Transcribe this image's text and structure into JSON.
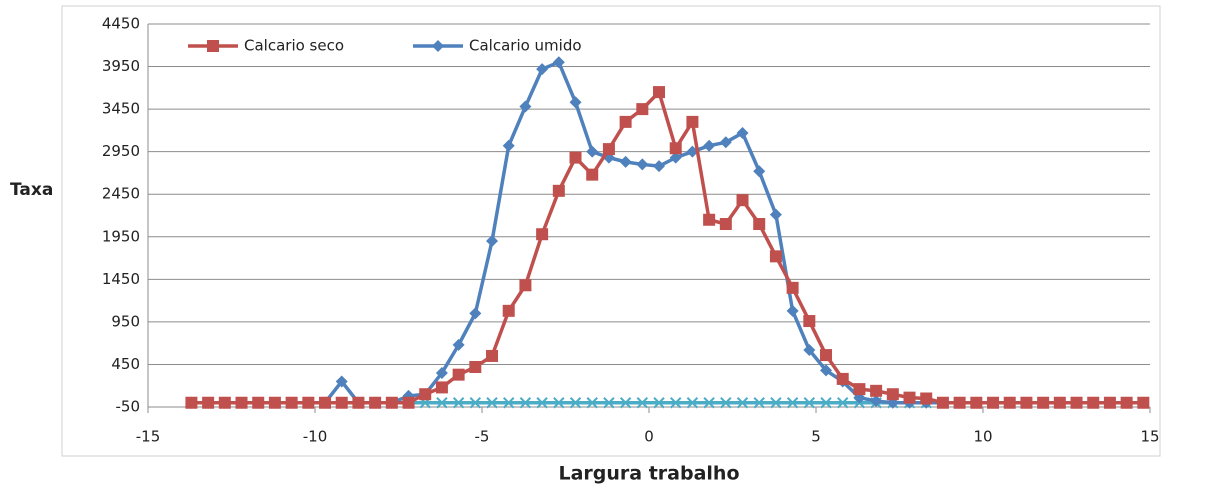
{
  "chart_data": {
    "type": "line",
    "x_label": "Largura trabalho",
    "y_label": "Taxa",
    "x": [
      -13.7,
      -13.2,
      -12.7,
      -12.2,
      -11.7,
      -11.2,
      -10.7,
      -10.2,
      -9.7,
      -9.2,
      -8.7,
      -8.2,
      -7.7,
      -7.2,
      -6.7,
      -6.2,
      -5.7,
      -5.2,
      -4.7,
      -4.2,
      -3.7,
      -3.2,
      -2.7,
      -2.2,
      -1.7,
      -1.2,
      -0.7,
      -0.2,
      0.3,
      0.8,
      1.3,
      1.8,
      2.3,
      2.8,
      3.3,
      3.8,
      4.3,
      4.8,
      5.3,
      5.8,
      6.3,
      6.8,
      7.3,
      7.8,
      8.3,
      8.8,
      9.3,
      9.8,
      10.3,
      10.8,
      11.3,
      11.8,
      12.3,
      12.8,
      13.3,
      13.8,
      14.3,
      14.8
    ],
    "series": [
      {
        "name": "Calcario seco",
        "color": "#c0504d",
        "marker": "square",
        "values": [
          0,
          0,
          0,
          0,
          0,
          0,
          0,
          0,
          0,
          0,
          0,
          0,
          0,
          0,
          100,
          180,
          330,
          420,
          550,
          1080,
          1380,
          1980,
          2490,
          2880,
          2680,
          2980,
          3300,
          3450,
          3650,
          2990,
          3300,
          2150,
          2100,
          2380,
          2100,
          1720,
          1350,
          960,
          560,
          280,
          160,
          140,
          100,
          60,
          50,
          0,
          0,
          0,
          0,
          0,
          0,
          0,
          0,
          0,
          0,
          0,
          0,
          0
        ]
      },
      {
        "name": "Calcario umido",
        "color": "#4f81bd",
        "marker": "diamond",
        "values": [
          0,
          0,
          0,
          0,
          0,
          0,
          0,
          0,
          0,
          250,
          0,
          0,
          0,
          80,
          100,
          350,
          680,
          1050,
          1900,
          3020,
          3480,
          3920,
          4000,
          3530,
          2950,
          2880,
          2830,
          2800,
          2780,
          2880,
          2950,
          3020,
          3060,
          3170,
          2720,
          2210,
          1080,
          620,
          380,
          250,
          60,
          20,
          0,
          0,
          0,
          0,
          0,
          0,
          0,
          0,
          0,
          0,
          0,
          0,
          0,
          0,
          0,
          0
        ]
      },
      {
        "color": "#4bacc6",
        "marker": "x",
        "values": [
          0,
          0,
          0,
          0,
          0,
          0,
          0,
          0,
          0,
          0,
          0,
          0,
          0,
          0,
          0,
          0,
          0,
          0,
          0,
          0,
          0,
          0,
          0,
          0,
          0,
          0,
          0,
          0,
          0,
          0,
          0,
          0,
          0,
          0,
          0,
          0,
          0,
          0,
          0,
          0,
          0,
          0,
          0,
          0,
          0,
          0,
          0,
          0,
          0,
          0,
          0,
          0,
          0,
          0,
          0,
          0,
          0,
          0
        ]
      }
    ],
    "xlim": [
      -15,
      15
    ],
    "xticks": [
      -15,
      -10,
      -5,
      0,
      5,
      10,
      15
    ],
    "ylim": [
      -50,
      4450
    ],
    "yticks": [
      -50,
      450,
      950,
      1450,
      1950,
      2450,
      2950,
      3450,
      3950,
      4450
    ],
    "grid": true,
    "legend": "top-left"
  }
}
